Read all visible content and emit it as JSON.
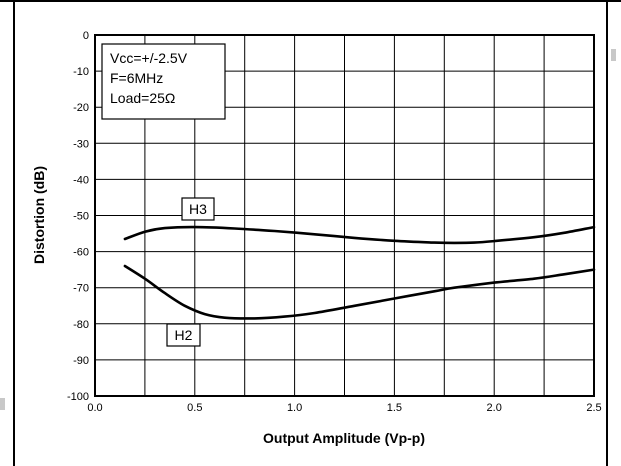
{
  "chart_data": {
    "type": "line",
    "title": "",
    "xlabel": "Output Amplitude (Vp-p)",
    "ylabel": "Distortion  (dB)",
    "xlim": [
      0.0,
      2.5
    ],
    "ylim": [
      -100,
      0
    ],
    "x_ticks": [
      "0.0",
      "0.5",
      "1.0",
      "1.5",
      "2.0",
      "2.5"
    ],
    "y_ticks": [
      "0",
      "-10",
      "-20",
      "-30",
      "-40",
      "-50",
      "-60",
      "-70",
      "-80",
      "-90",
      "-100"
    ],
    "x_tick_values": [
      0.0,
      0.5,
      1.0,
      1.5,
      2.0,
      2.5
    ],
    "y_tick_values": [
      0,
      -10,
      -20,
      -30,
      -40,
      -50,
      -60,
      -70,
      -80,
      -90,
      -100
    ],
    "x_grid_values": [
      0.0,
      0.25,
      0.5,
      0.75,
      1.0,
      1.25,
      1.5,
      1.75,
      2.0,
      2.25,
      2.5
    ],
    "grid": true,
    "conditions": [
      "Vcc=+/-2.5V",
      "F=6MHz",
      "Load=25Ω"
    ],
    "series": [
      {
        "name": "H3",
        "x": [
          0.15,
          0.25,
          0.35,
          0.5,
          0.7,
          0.9,
          1.1,
          1.3,
          1.5,
          1.7,
          1.8,
          1.9,
          2.0,
          2.2,
          2.35,
          2.5
        ],
        "y": [
          -56.5,
          -54.5,
          -53.5,
          -53.2,
          -53.6,
          -54.3,
          -55.2,
          -56.2,
          -57,
          -57.5,
          -57.6,
          -57.5,
          -57.1,
          -56,
          -54.8,
          -53.2
        ]
      },
      {
        "name": "H2",
        "x": [
          0.15,
          0.25,
          0.35,
          0.45,
          0.55,
          0.65,
          0.8,
          0.95,
          1.1,
          1.3,
          1.5,
          1.7,
          1.8,
          2.0,
          2.2,
          2.35,
          2.5
        ],
        "y": [
          -64,
          -67.5,
          -71.5,
          -75,
          -77.3,
          -78.3,
          -78.5,
          -78,
          -77,
          -75,
          -73,
          -71,
          -70,
          -68.6,
          -67.5,
          -66.3,
          -65
        ]
      }
    ]
  }
}
